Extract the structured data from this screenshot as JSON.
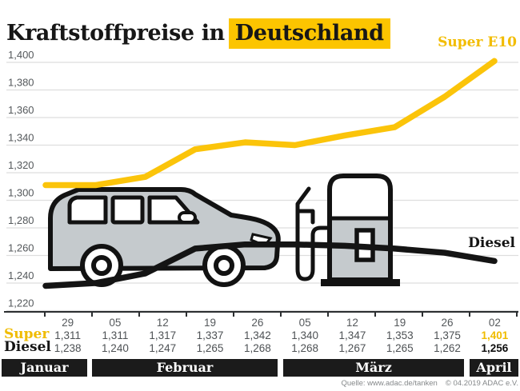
{
  "title": {
    "prefix": "Kraftstoffpreise in",
    "highlight": "Deutschland"
  },
  "chart_data": {
    "type": "line",
    "title": "Kraftstoffpreise in Deutschland",
    "ylim": [
      1220,
      1400
    ],
    "ytick_step": 20,
    "ytick_labels": [
      "1,400",
      "1,380",
      "1,360",
      "1,340",
      "1,320",
      "1,300",
      "1,280",
      "1,260",
      "1,240",
      "1,220"
    ],
    "grid": true,
    "x_dates": [
      "29",
      "05",
      "12",
      "19",
      "26",
      "05",
      "12",
      "19",
      "26",
      "02"
    ],
    "months": [
      {
        "label": "Januar",
        "columns": 1
      },
      {
        "label": "Februar",
        "columns": 4
      },
      {
        "label": "März",
        "columns": 4
      },
      {
        "label": "April",
        "columns": 1
      }
    ],
    "series": [
      {
        "name": "Super E10",
        "color": "#FBC40A",
        "values": [
          1311,
          1311,
          1317,
          1337,
          1342,
          1340,
          1347,
          1353,
          1375,
          1401
        ]
      },
      {
        "name": "Diesel",
        "color": "#141414",
        "values": [
          1238,
          1240,
          1247,
          1265,
          1268,
          1268,
          1267,
          1265,
          1262,
          1256
        ]
      }
    ],
    "legend_position": "end-of-line-labels"
  },
  "table": {
    "row_labels": {
      "super": "Super",
      "diesel": "Diesel"
    },
    "dates": [
      "29",
      "05",
      "12",
      "19",
      "26",
      "05",
      "12",
      "19",
      "26",
      "02"
    ],
    "super": [
      "1,311",
      "1,311",
      "1,317",
      "1,337",
      "1,342",
      "1,340",
      "1,347",
      "1,353",
      "1,375",
      "1,401"
    ],
    "diesel": [
      "1,238",
      "1,240",
      "1,247",
      "1,265",
      "1,268",
      "1,268",
      "1,267",
      "1,265",
      "1,262",
      "1,256"
    ]
  },
  "footer": {
    "source": "Quelle: www.adac.de/tanken",
    "copyright": "© 04.2019  ADAC e.V."
  },
  "colors": {
    "highlight_yellow": "#FCC500",
    "super_yellow": "#F2BC00",
    "diesel_black": "#141414",
    "illustration_gray": "#C5CACD",
    "grid_gray": "#DEDEDE",
    "month_band_black": "#1B1B1B"
  }
}
